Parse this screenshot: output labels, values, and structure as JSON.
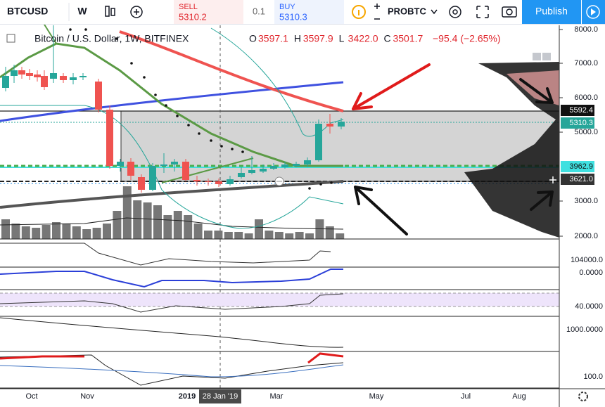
{
  "toolbar": {
    "symbol": "BTCUSD",
    "interval": "W",
    "sell": {
      "label": "SELL",
      "price": "5310.2"
    },
    "quantity": "0.1",
    "buy": {
      "label": "BUY",
      "price": "5310.3"
    },
    "account": "PROBTC",
    "publish": "Publish"
  },
  "legend": {
    "title": "Bitcoin / U.S. Dollar, 1W, BITFINEX",
    "ohlc": [
      {
        "label": "O",
        "value": "3597.1"
      },
      {
        "label": "H",
        "value": "3597.9"
      },
      {
        "label": "L",
        "value": "3422.0"
      },
      {
        "label": "C",
        "value": "3501.7"
      }
    ],
    "change": "−95.4 (−2.65%)"
  },
  "price_axis": {
    "ticks": [
      "8000.0",
      "7000.0",
      "6000.0",
      "5000.0",
      "3000.0",
      "2000.0"
    ],
    "badges": [
      "5592.4",
      "5310.3",
      "3962.9",
      "3621.0"
    ]
  },
  "pane_axes": [
    "104000.0",
    "0.0000",
    "40.0000",
    "1000.0000",
    "100.0"
  ],
  "time_axis": {
    "ticks": [
      "Oct",
      "Nov",
      "2019",
      "Mar",
      "May",
      "Jul",
      "Aug"
    ],
    "crosshair": "28 Jan '19"
  }
}
